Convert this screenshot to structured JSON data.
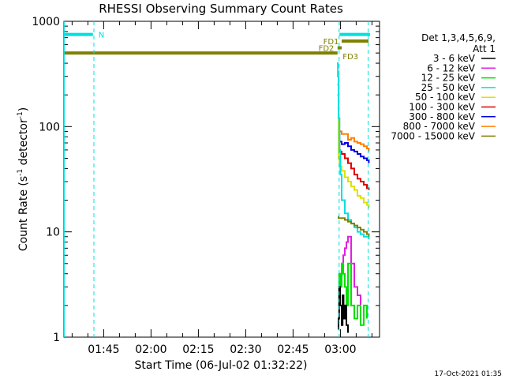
{
  "chart_data": {
    "type": "line",
    "title": "RHESSI Observing Summary Count Rates",
    "xlabel": "Start Time (06-Jul-02 01:32:22)",
    "ylabel_main": "Count Rate (s",
    "ylabel_sup1": "-1",
    "ylabel_mid": " detector",
    "ylabel_sup2": "-1",
    "ylabel_end": ")",
    "y_scale": "log",
    "ylim": [
      1,
      1000
    ],
    "xlim_minutes": [
      0,
      100
    ],
    "x_tick_labels": [
      {
        "label": "01:45",
        "t": 12.6
      },
      {
        "label": "02:00",
        "t": 27.6
      },
      {
        "label": "02:15",
        "t": 42.6
      },
      {
        "label": "02:30",
        "t": 57.6
      },
      {
        "label": "02:45",
        "t": 72.6
      },
      {
        "label": "03:00",
        "t": 87.6
      }
    ],
    "y_tick_labels": [
      {
        "label": "1",
        "v": 1
      },
      {
        "label": "10",
        "v": 10
      },
      {
        "label": "100",
        "v": 100
      },
      {
        "label": "1000",
        "v": 1000
      }
    ],
    "legend": {
      "placement": "right",
      "header": "Det 1,3,4,5,6,9,",
      "header2": "Att 1",
      "entries": [
        {
          "label": "3 - 6 keV",
          "color": "#000000"
        },
        {
          "label": "6 - 12 keV",
          "color": "#e020e0"
        },
        {
          "label": "12 - 25 keV",
          "color": "#00e000"
        },
        {
          "label": "25 - 50 keV",
          "color": "#00e0e0"
        },
        {
          "label": "50 - 100 keV",
          "color": "#e0e000"
        },
        {
          "label": "100 - 300 keV",
          "color": "#e00000"
        },
        {
          "label": "300 - 800 keV",
          "color": "#0000e0"
        },
        {
          "label": "800 - 7000 keV",
          "color": "#ff8000"
        },
        {
          "label": "7000 - 15000 keV",
          "color": "#808000"
        }
      ]
    },
    "flags": [
      {
        "label": "N",
        "color": "#00e0e0",
        "y": 750,
        "t_start": 0,
        "t_end": 9.2
      },
      {
        "label": "",
        "color": "#00e0e0",
        "y": 750,
        "t_start": 87.3,
        "t_end": 97.0
      },
      {
        "label": "FD1",
        "color": "#808000",
        "y": 650,
        "t_start": 88.0,
        "t_end": 96.5
      },
      {
        "label": "FD2",
        "color": "#808000",
        "y": 560,
        "t_start": 86.7,
        "t_end": 88.0
      },
      {
        "label": "FD3",
        "color": "#808000",
        "y": 500,
        "t_start": 0,
        "t_end": 86.7
      }
    ],
    "vertical_lines": [
      {
        "t": 9.5,
        "color": "#00e0e0",
        "dashed": true
      },
      {
        "t": 87.2,
        "color": "#00e0e0",
        "dashed": true
      },
      {
        "t": 96.4,
        "color": "#00e0e0",
        "dashed": true
      },
      {
        "t": 0.1,
        "color": "#00e0e0",
        "dashed": false
      }
    ],
    "series": [
      {
        "name": "800 - 7000 keV",
        "color": "#ff8000",
        "t": [
          86.7,
          87.0,
          87.3,
          88.0,
          89.0,
          90.0,
          91.0,
          92.0,
          93.0,
          94.0,
          95.0,
          96.0,
          96.6
        ],
        "y": [
          300,
          120,
          90,
          85,
          85,
          75,
          78,
          72,
          70,
          68,
          65,
          62,
          58
        ]
      },
      {
        "name": "300 - 800 keV",
        "color": "#0000e0",
        "t": [
          86.7,
          87.0,
          87.3,
          88.0,
          89.0,
          90.0,
          91.0,
          92.0,
          93.0,
          94.0,
          95.0,
          96.0,
          96.6
        ],
        "y": [
          250,
          90,
          72,
          68,
          70,
          65,
          60,
          58,
          55,
          52,
          50,
          48,
          45
        ]
      },
      {
        "name": "100 - 300 keV",
        "color": "#e00000",
        "t": [
          86.7,
          87.0,
          87.3,
          88.0,
          89.0,
          90.0,
          91.0,
          92.0,
          93.0,
          94.0,
          95.0,
          96.0,
          96.6
        ],
        "y": [
          200,
          70,
          58,
          55,
          50,
          45,
          40,
          35,
          32,
          30,
          28,
          26,
          25
        ]
      },
      {
        "name": "50 - 100 keV",
        "color": "#e0e000",
        "t": [
          86.7,
          87.0,
          87.3,
          88.0,
          89.0,
          90.0,
          91.0,
          92.0,
          93.0,
          94.0,
          95.0,
          96.0,
          96.6
        ],
        "y": [
          150,
          50,
          42,
          38,
          33,
          30,
          27,
          25,
          22,
          21,
          19,
          18,
          17
        ]
      },
      {
        "name": "25 - 50 keV",
        "color": "#00e0e0",
        "t": [
          86.5,
          86.8,
          87.0,
          87.3,
          87.6,
          88.0,
          89.0,
          90.0,
          91.0,
          92.0,
          93.0,
          94.0,
          95.0,
          96.0,
          96.6
        ],
        "y": [
          400,
          300,
          120,
          60,
          35,
          20,
          15,
          13,
          12,
          11,
          10,
          9.5,
          9,
          9,
          8.5
        ]
      },
      {
        "name": "7000 - 15000 keV",
        "color": "#808000",
        "t": [
          86.9,
          87.0,
          88.0,
          89.0,
          90.0,
          91.0,
          92.0,
          93.0,
          94.0,
          95.0,
          96.0,
          96.6
        ],
        "y": [
          14,
          13.5,
          13.5,
          13,
          12.5,
          12,
          11.5,
          11,
          10.5,
          10,
          9.5,
          9
        ]
      },
      {
        "name": "6 - 12 keV",
        "color": "#e020e0",
        "t": [
          87.0,
          87.5,
          88.0,
          88.5,
          89.0,
          89.5,
          90.0,
          91.0,
          92.0,
          93.0,
          94.0
        ],
        "y": [
          3,
          4,
          5,
          6,
          7,
          8,
          9,
          5,
          3,
          2.5,
          2
        ]
      },
      {
        "name": "12 - 25 keV",
        "color": "#00e000",
        "t": [
          86.9,
          87.2,
          87.5,
          88.0,
          88.5,
          89.0,
          89.5,
          90.0,
          91.0,
          92.0,
          93.0,
          94.0,
          95.0,
          96.0
        ],
        "y": [
          2,
          4,
          3,
          5,
          4,
          3,
          2,
          5,
          2,
          1.5,
          2,
          1.3,
          2,
          1.5
        ]
      },
      {
        "name": "3 - 6 keV",
        "color": "#000000",
        "t": [
          86.8,
          87.0,
          87.2,
          87.5,
          88.0,
          88.3,
          88.6,
          89.0,
          89.5,
          90.0
        ],
        "y": [
          1.2,
          1.5,
          3,
          2,
          1.3,
          2.5,
          1.5,
          2,
          1.3,
          1.1
        ]
      }
    ],
    "footer_date": "17-Oct-2021 01:35"
  }
}
